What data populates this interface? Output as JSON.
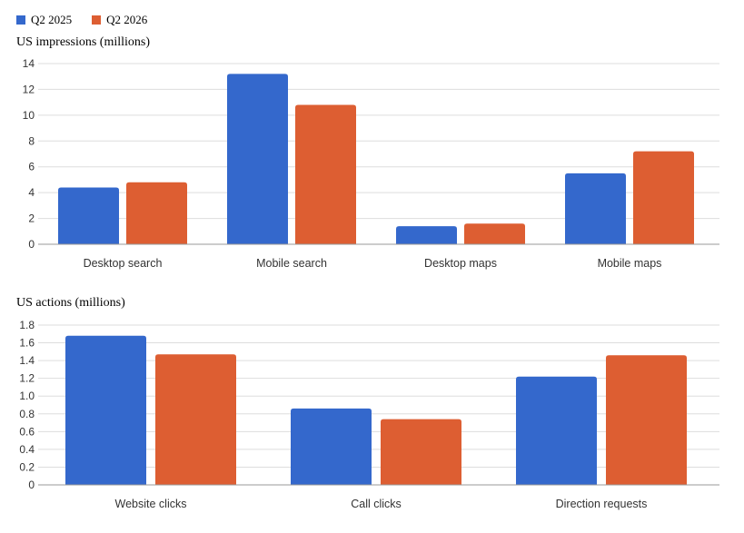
{
  "legend": {
    "items": [
      {
        "label": "Q2 2025",
        "color": "#3468cc"
      },
      {
        "label": "Q2 2026",
        "color": "#dd5e32"
      }
    ]
  },
  "chart_data": [
    {
      "type": "bar",
      "title": "US impressions (millions)",
      "categories": [
        "Desktop search",
        "Mobile search",
        "Desktop maps",
        "Mobile maps"
      ],
      "series": [
        {
          "name": "Q2 2025",
          "color": "#3468cc",
          "values": [
            4.4,
            13.2,
            1.4,
            5.5
          ]
        },
        {
          "name": "Q2 2026",
          "color": "#dd5e32",
          "values": [
            4.8,
            10.8,
            1.6,
            7.2
          ]
        }
      ],
      "ylim": [
        0,
        14
      ],
      "yticks": [
        "0",
        "2",
        "4",
        "6",
        "8",
        "10",
        "12",
        "14"
      ],
      "grid": true,
      "legend_position": "top-left"
    },
    {
      "type": "bar",
      "title": "US actions (millions)",
      "categories": [
        "Website clicks",
        "Call clicks",
        "Direction requests"
      ],
      "series": [
        {
          "name": "Q2 2025",
          "color": "#3468cc",
          "values": [
            1.68,
            0.86,
            1.22
          ]
        },
        {
          "name": "Q2 2026",
          "color": "#dd5e32",
          "values": [
            1.47,
            0.74,
            1.46
          ]
        }
      ],
      "ylim": [
        0,
        1.8
      ],
      "yticks": [
        "0",
        "0.2",
        "0.4",
        "0.6",
        "0.8",
        "1.0",
        "1.2",
        "1.4",
        "1.6",
        "1.8"
      ],
      "grid": true,
      "legend_position": "top-left"
    }
  ]
}
